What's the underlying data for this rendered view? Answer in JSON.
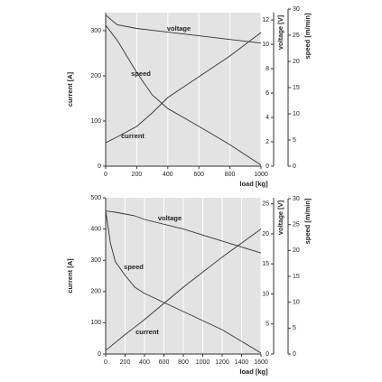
{
  "chart_data": [
    {
      "type": "line",
      "xlabel": "load [kg]",
      "ylabel": "current [A]",
      "y2label": "voltage [V]",
      "y3label": "speed [m/min]",
      "x": [
        0,
        75,
        200,
        300,
        400,
        600,
        800,
        1000
      ],
      "xlim": [
        0,
        1000
      ],
      "xticks": [
        0,
        200,
        400,
        600,
        800,
        1000
      ],
      "ylim": [
        0,
        340
      ],
      "yticks": [
        0,
        100,
        200,
        300
      ],
      "y2lim": [
        0,
        12.6
      ],
      "y2ticks": [
        0,
        2,
        4,
        6,
        8,
        10,
        12
      ],
      "y3lim": [
        0,
        30
      ],
      "y3ticks": [
        0,
        5,
        10,
        15,
        20,
        25,
        30
      ],
      "grid": true,
      "series": [
        {
          "name": "voltage",
          "color": "#333333",
          "axis": "y2",
          "values": [
            12.4,
            11.6,
            11.3,
            11.15,
            11.0,
            10.7,
            10.4,
            10.1
          ]
        },
        {
          "name": "speed",
          "color": "#333333",
          "axis": "y3",
          "values": [
            26.9,
            24,
            17.9,
            13.6,
            11,
            7.6,
            4.1,
            0.2
          ]
        },
        {
          "name": "current",
          "color": "#333333",
          "axis": "y",
          "values": [
            52,
            65,
            88,
            118,
            152,
            198,
            244,
            296
          ]
        }
      ]
    },
    {
      "type": "line",
      "xlabel": "load [kg]",
      "ylabel": "current [A]",
      "y2label": "voltage [V]",
      "y3label": "speed [m/min]",
      "x": [
        0,
        50,
        100,
        200,
        300,
        400,
        800,
        1200,
        1600
      ],
      "xlim": [
        0,
        1600
      ],
      "xticks": [
        0,
        200,
        400,
        600,
        800,
        1000,
        1200,
        1400,
        1600
      ],
      "ylim": [
        0,
        500
      ],
      "yticks": [
        0,
        100,
        200,
        300,
        400,
        500
      ],
      "y2lim": [
        0,
        26
      ],
      "y2ticks": [
        0,
        5,
        10,
        15,
        20,
        25
      ],
      "y3lim": [
        0,
        30
      ],
      "y3ticks": [
        0,
        5,
        10,
        15,
        20,
        25,
        30
      ],
      "grid": true,
      "series": [
        {
          "name": "voltage",
          "color": "#333333",
          "axis": "y2",
          "values": [
            23.8,
            23.7,
            23.6,
            23.3,
            23.0,
            22.4,
            20.8,
            18.8,
            16.8
          ]
        },
        {
          "name": "speed",
          "color": "#333333",
          "axis": "y3",
          "values": [
            27.7,
            21.3,
            17.8,
            15.2,
            12.9,
            11.7,
            8.2,
            4.7,
            0.2
          ]
        },
        {
          "name": "current",
          "color": "#333333",
          "axis": "y",
          "values": [
            12,
            24,
            37,
            62,
            86,
            110,
            214,
            310,
            400
          ]
        }
      ]
    }
  ]
}
